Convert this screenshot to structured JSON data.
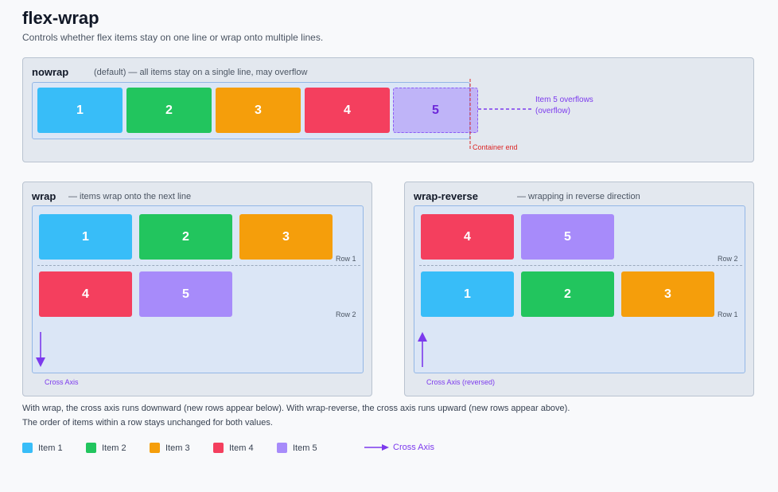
{
  "header": {
    "title": "flex-wrap",
    "subtitle": "Controls whether flex items stay on one line or wrap onto multiple lines."
  },
  "colors": {
    "item1": "#38bdf8",
    "item2": "#22c55e",
    "item3": "#f59e0b",
    "item4": "#f43f5e",
    "item5": "#a78bfa",
    "axis": "#7c3aed",
    "container_end": "#dc2626"
  },
  "nowrap": {
    "title": "nowrap",
    "desc": "(default) — all items stay on a single line, may overflow",
    "items": [
      "1",
      "2",
      "3",
      "4",
      "5"
    ],
    "overflow_label_1": "Item 5 overflows",
    "overflow_label_2": "(overflow)",
    "container_end": "Container end"
  },
  "wrap": {
    "title": "wrap",
    "desc": "— items wrap onto the next line",
    "row1_items": [
      "1",
      "2",
      "3"
    ],
    "row2_items": [
      "4",
      "5"
    ],
    "row1_label": "Row 1",
    "row2_label": "Row 2",
    "axis_label": "Cross Axis",
    "axis_icon": "arrow-down-icon"
  },
  "wrap_reverse": {
    "title": "wrap-reverse",
    "desc": "— wrapping in reverse direction",
    "top_row_items": [
      "4",
      "5"
    ],
    "bottom_row_items": [
      "1",
      "2",
      "3"
    ],
    "top_row_label": "Row 2",
    "bottom_row_label": "Row 1",
    "axis_label": "Cross Axis (reversed)",
    "axis_icon": "arrow-up-icon"
  },
  "notes": {
    "line1": "With wrap, the cross axis runs downward (new rows appear below). With wrap-reverse, the cross axis runs upward (new rows appear above).",
    "line2": "The order of items within a row stays unchanged for both values."
  },
  "legend": {
    "items": [
      "Item 1",
      "Item 2",
      "Item 3",
      "Item 4",
      "Item 5"
    ],
    "axis": "Cross Axis",
    "axis_icon": "arrow-right-icon"
  }
}
